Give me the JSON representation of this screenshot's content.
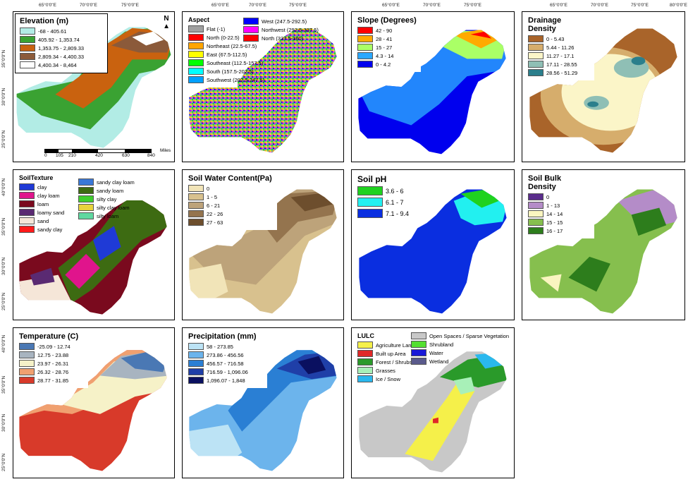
{
  "axis_top": [
    "65°0'0\"E",
    "70°0'0\"E",
    "75°0'0\"E",
    "80°0'0\"E"
  ],
  "axis_left": [
    "25°0'0\"N",
    "30°0'0\"N",
    "35°0'0\"N",
    "40°0'0\"N"
  ],
  "elevation": {
    "title": "Elevation (m)",
    "items": [
      {
        "label": "-68 - 405.61",
        "color": "#b2ece5"
      },
      {
        "label": "405.92 - 1,353.74",
        "color": "#3aa232"
      },
      {
        "label": "1,353.75 - 2,809.33",
        "color": "#c9620f"
      },
      {
        "label": "2,809.34 - 4,400.33",
        "color": "#8b5a3a"
      },
      {
        "label": "4,400.34 - 8,464",
        "color": "#ffffff"
      }
    ],
    "north": "N",
    "scale": [
      "0",
      "105",
      "210",
      "420",
      "630",
      "840"
    ],
    "scale_unit": "Miles"
  },
  "aspect": {
    "title": "Aspect",
    "items": [
      {
        "label": "Flat (-1)",
        "color": "#a0a0a0"
      },
      {
        "label": "North (0-22.5)",
        "color": "#ff0000"
      },
      {
        "label": "Northeast (22.5-67.5)",
        "color": "#ffa500"
      },
      {
        "label": "East (67.5-112.5)",
        "color": "#ffff00"
      },
      {
        "label": "Southeast (112.5-157.5)",
        "color": "#00ff00"
      },
      {
        "label": "South (157.5-202.5)",
        "color": "#00ffff"
      },
      {
        "label": "Southwest (202.5-247.5)",
        "color": "#00a0ff"
      },
      {
        "label": "West (247.5-292.5)",
        "color": "#0000ff"
      },
      {
        "label": "Northwest (292.5-337.5)",
        "color": "#ff00ff"
      },
      {
        "label": "North (337.5-360)",
        "color": "#ff0000"
      }
    ]
  },
  "slope": {
    "title": "Slope (Degrees)",
    "items": [
      {
        "label": "42 - 90",
        "color": "#ff0000"
      },
      {
        "label": "28 - 41",
        "color": "#ffaa00"
      },
      {
        "label": "15 - 27",
        "color": "#aaff66"
      },
      {
        "label": "4.3 - 14",
        "color": "#2aa8ff"
      },
      {
        "label": "0 - 4.2",
        "color": "#0000ee"
      }
    ]
  },
  "drainage": {
    "title": "Drainage Density",
    "items": [
      {
        "label": "0 - 5.43",
        "color": "#a9642a"
      },
      {
        "label": "5.44 - 11.26",
        "color": "#d6ad6c"
      },
      {
        "label": "11.27 - 17.1",
        "color": "#fbf5c8"
      },
      {
        "label": "17.11 - 28.55",
        "color": "#8fbfb5"
      },
      {
        "label": "28.56 - 51.29",
        "color": "#2b7f8c"
      }
    ]
  },
  "soiltexture": {
    "title": "SoilTexture",
    "col1": [
      {
        "label": "clay",
        "color": "#1f3ad6"
      },
      {
        "label": "clay loam",
        "color": "#e0148c"
      },
      {
        "label": "loam",
        "color": "#7a0a1e"
      },
      {
        "label": "loamy sand",
        "color": "#5a2a72"
      },
      {
        "label": "sand",
        "color": "#f5e6d8"
      },
      {
        "label": "sandy clay",
        "color": "#ff1a1a"
      }
    ],
    "col2": [
      {
        "label": "sandy clay loam",
        "color": "#3a78d8"
      },
      {
        "label": "sandy loam",
        "color": "#3d6b12"
      },
      {
        "label": "silty clay",
        "color": "#3fcf2e"
      },
      {
        "label": "silty clay loam",
        "color": "#e8d33c"
      },
      {
        "label": "silty loam",
        "color": "#5fd8a0"
      }
    ]
  },
  "soilwater": {
    "title": "Soil Water Content(Pa)",
    "items": [
      {
        "label": "0",
        "color": "#f1e4b8"
      },
      {
        "label": "1 - 5",
        "color": "#d8c18e"
      },
      {
        "label": "6 - 21",
        "color": "#bda37a"
      },
      {
        "label": "22 - 26",
        "color": "#94744e"
      },
      {
        "label": "27 - 63",
        "color": "#6d4e2d"
      }
    ]
  },
  "soilph": {
    "title": "Soil pH",
    "items": [
      {
        "label": "3.6 - 6",
        "color": "#1fd21f"
      },
      {
        "label": "6.1 - 7",
        "color": "#22f0f0"
      },
      {
        "label": "7.1 - 9.4",
        "color": "#0a2ee0"
      }
    ]
  },
  "bulkdensity": {
    "title": "Soil Bulk Density",
    "items": [
      {
        "label": "0",
        "color": "#5a2c8c"
      },
      {
        "label": "1 - 13",
        "color": "#b48cc8"
      },
      {
        "label": "14 - 14",
        "color": "#faf5c0"
      },
      {
        "label": "15 - 15",
        "color": "#86bf4e"
      },
      {
        "label": "16 - 17",
        "color": "#2d7d1c"
      }
    ]
  },
  "temperature": {
    "title": "Temperature (C)",
    "items": [
      {
        "label": "-25.09 - 12.74",
        "color": "#4a78b4"
      },
      {
        "label": "12.75 - 23.88",
        "color": "#a8b4c0"
      },
      {
        "label": "23.97 - 26.31",
        "color": "#f6f2c8"
      },
      {
        "label": "26.32 - 28.76",
        "color": "#f0a070"
      },
      {
        "label": "28.77 - 31.85",
        "color": "#d83a2a"
      }
    ]
  },
  "precipitation": {
    "title": "Precipitation (mm)",
    "items": [
      {
        "label": "58 - 273.85",
        "color": "#bce3f5"
      },
      {
        "label": "273.86 - 456.56",
        "color": "#6cb4ec"
      },
      {
        "label": "456.57 - 716.58",
        "color": "#2a7fd4"
      },
      {
        "label": "716.59 - 1,096.06",
        "color": "#1f3fa8"
      },
      {
        "label": "1,096.07 - 1,848",
        "color": "#0a1060"
      }
    ]
  },
  "lulc": {
    "title": "LULC",
    "col1": [
      {
        "label": "Agriculture Land",
        "color": "#f5f04a"
      },
      {
        "label": "Built up Area",
        "color": "#e02828"
      },
      {
        "label": "Forest / Shrubs",
        "color": "#2a9a2a"
      },
      {
        "label": "Grasses",
        "color": "#a8f0b8"
      },
      {
        "label": "Ice / Snow",
        "color": "#2ab8ee"
      }
    ],
    "col2": [
      {
        "label": "Open Spaces / Sparse Vegetation",
        "color": "#c8c8c8"
      },
      {
        "label": "Shrubland",
        "color": "#54e030"
      },
      {
        "label": "Water",
        "color": "#1818d8"
      },
      {
        "label": "Wetland",
        "color": "#5a5a8c"
      }
    ]
  }
}
